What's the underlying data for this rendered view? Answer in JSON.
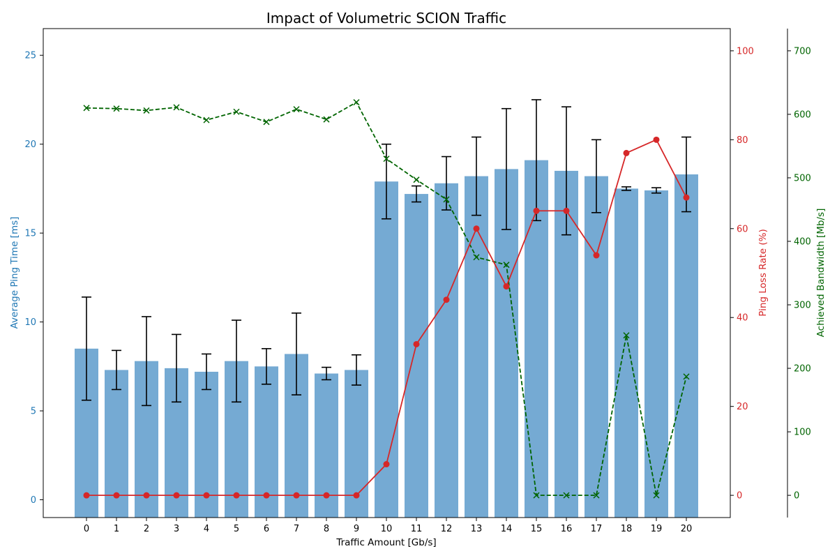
{
  "chart_data": {
    "type": "bar",
    "title": "Impact of Volumetric SCION Traffic",
    "xlabel": "Traffic Amount [Gb/s]",
    "categories": [
      "0",
      "1",
      "2",
      "3",
      "4",
      "5",
      "6",
      "7",
      "8",
      "9",
      "10",
      "11",
      "12",
      "13",
      "14",
      "15",
      "16",
      "17",
      "18",
      "19",
      "20"
    ],
    "axes": {
      "y_left": {
        "label": "Average Ping Time [ms]",
        "ylim": [
          -1,
          26.5
        ],
        "ticks": [
          0,
          5,
          10,
          15,
          20,
          25
        ],
        "color": "#1f77b4"
      },
      "y_right1": {
        "label": "Ping Loss Rate (%)",
        "ylim": [
          -5,
          105
        ],
        "ticks": [
          0,
          20,
          40,
          60,
          80,
          100
        ],
        "color": "#d62728"
      },
      "y_right2": {
        "label": "Achieved Bandwidth [Mb/s]",
        "ylim": [
          -35,
          735
        ],
        "ticks": [
          0,
          100,
          200,
          300,
          400,
          500,
          600,
          700
        ],
        "color": "#006400"
      }
    },
    "series": [
      {
        "type": "bar",
        "axis": "y_left",
        "color": "#75aad3",
        "values": [
          8.5,
          7.3,
          7.8,
          7.4,
          7.2,
          7.8,
          7.5,
          8.2,
          7.1,
          7.3,
          17.9,
          17.2,
          17.8,
          18.2,
          18.6,
          19.1,
          18.5,
          18.2,
          17.5,
          17.4,
          18.3
        ],
        "errors": [
          2.9,
          1.1,
          2.5,
          1.9,
          1.0,
          2.3,
          1.0,
          2.3,
          0.35,
          0.85,
          2.1,
          0.45,
          1.5,
          2.2,
          3.4,
          3.4,
          3.6,
          2.05,
          0.1,
          0.15,
          2.1
        ]
      },
      {
        "type": "line",
        "axis": "y_right1",
        "color": "#d62728",
        "marker": "circle",
        "values": [
          0,
          0,
          0,
          0,
          0,
          0,
          0,
          0,
          0,
          0,
          7,
          34,
          44,
          60,
          47,
          64,
          64,
          54,
          77,
          80,
          67
        ]
      },
      {
        "type": "line",
        "axis": "y_right2",
        "color": "#006400",
        "dashed": true,
        "marker": "x",
        "values": [
          610,
          609,
          606,
          611,
          591,
          604,
          588,
          608,
          592,
          619,
          530,
          497,
          466,
          375,
          363,
          0,
          0,
          0,
          252,
          0,
          187
        ]
      }
    ],
    "grid": false
  }
}
